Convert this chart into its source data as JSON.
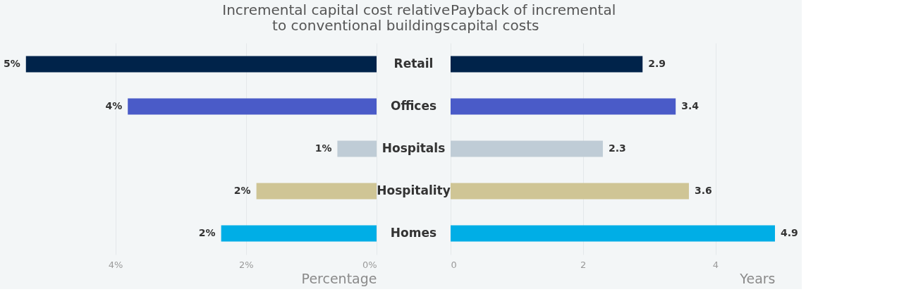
{
  "chart_data": [
    {
      "type": "bar",
      "orientation": "horizontal",
      "title": "Incremental capital cost relative\nto conventional buildings",
      "xlabel": "Percentage",
      "categories": [
        "Retail",
        "Offices",
        "Hospitals",
        "Hospitality",
        "Homes"
      ],
      "values": [
        5.37,
        3.81,
        0.6,
        1.84,
        2.38
      ],
      "colors": [
        "#00234a",
        "#4a5bc8",
        "#bfccd6",
        "#cfc595",
        "#00aee6"
      ],
      "value_labels": [
        "5%",
        "4%",
        "1%",
        "2%",
        "2%"
      ],
      "xlim": [
        5.4,
        0
      ],
      "xticks": [
        {
          "value": 4,
          "label": "4%"
        },
        {
          "value": 2,
          "label": "2%"
        },
        {
          "value": 0,
          "label": "0%"
        }
      ],
      "grid": "x"
    },
    {
      "type": "bar",
      "orientation": "horizontal",
      "title": "Payback of incremental\ncapital costs",
      "xlabel": "Years",
      "categories": [
        null,
        null,
        null,
        null,
        null
      ],
      "values": [
        2.9,
        3.4,
        2.3,
        3.6,
        4.9
      ],
      "colors": [
        "#00234a",
        "#4a5bc8",
        "#bfccd6",
        "#cfc595",
        "#00aee6"
      ],
      "data_labels": true,
      "xlim": [
        0,
        4.9
      ],
      "xticks": [
        0,
        2,
        4
      ],
      "grid": "x",
      "tick_labels": "x"
    }
  ]
}
